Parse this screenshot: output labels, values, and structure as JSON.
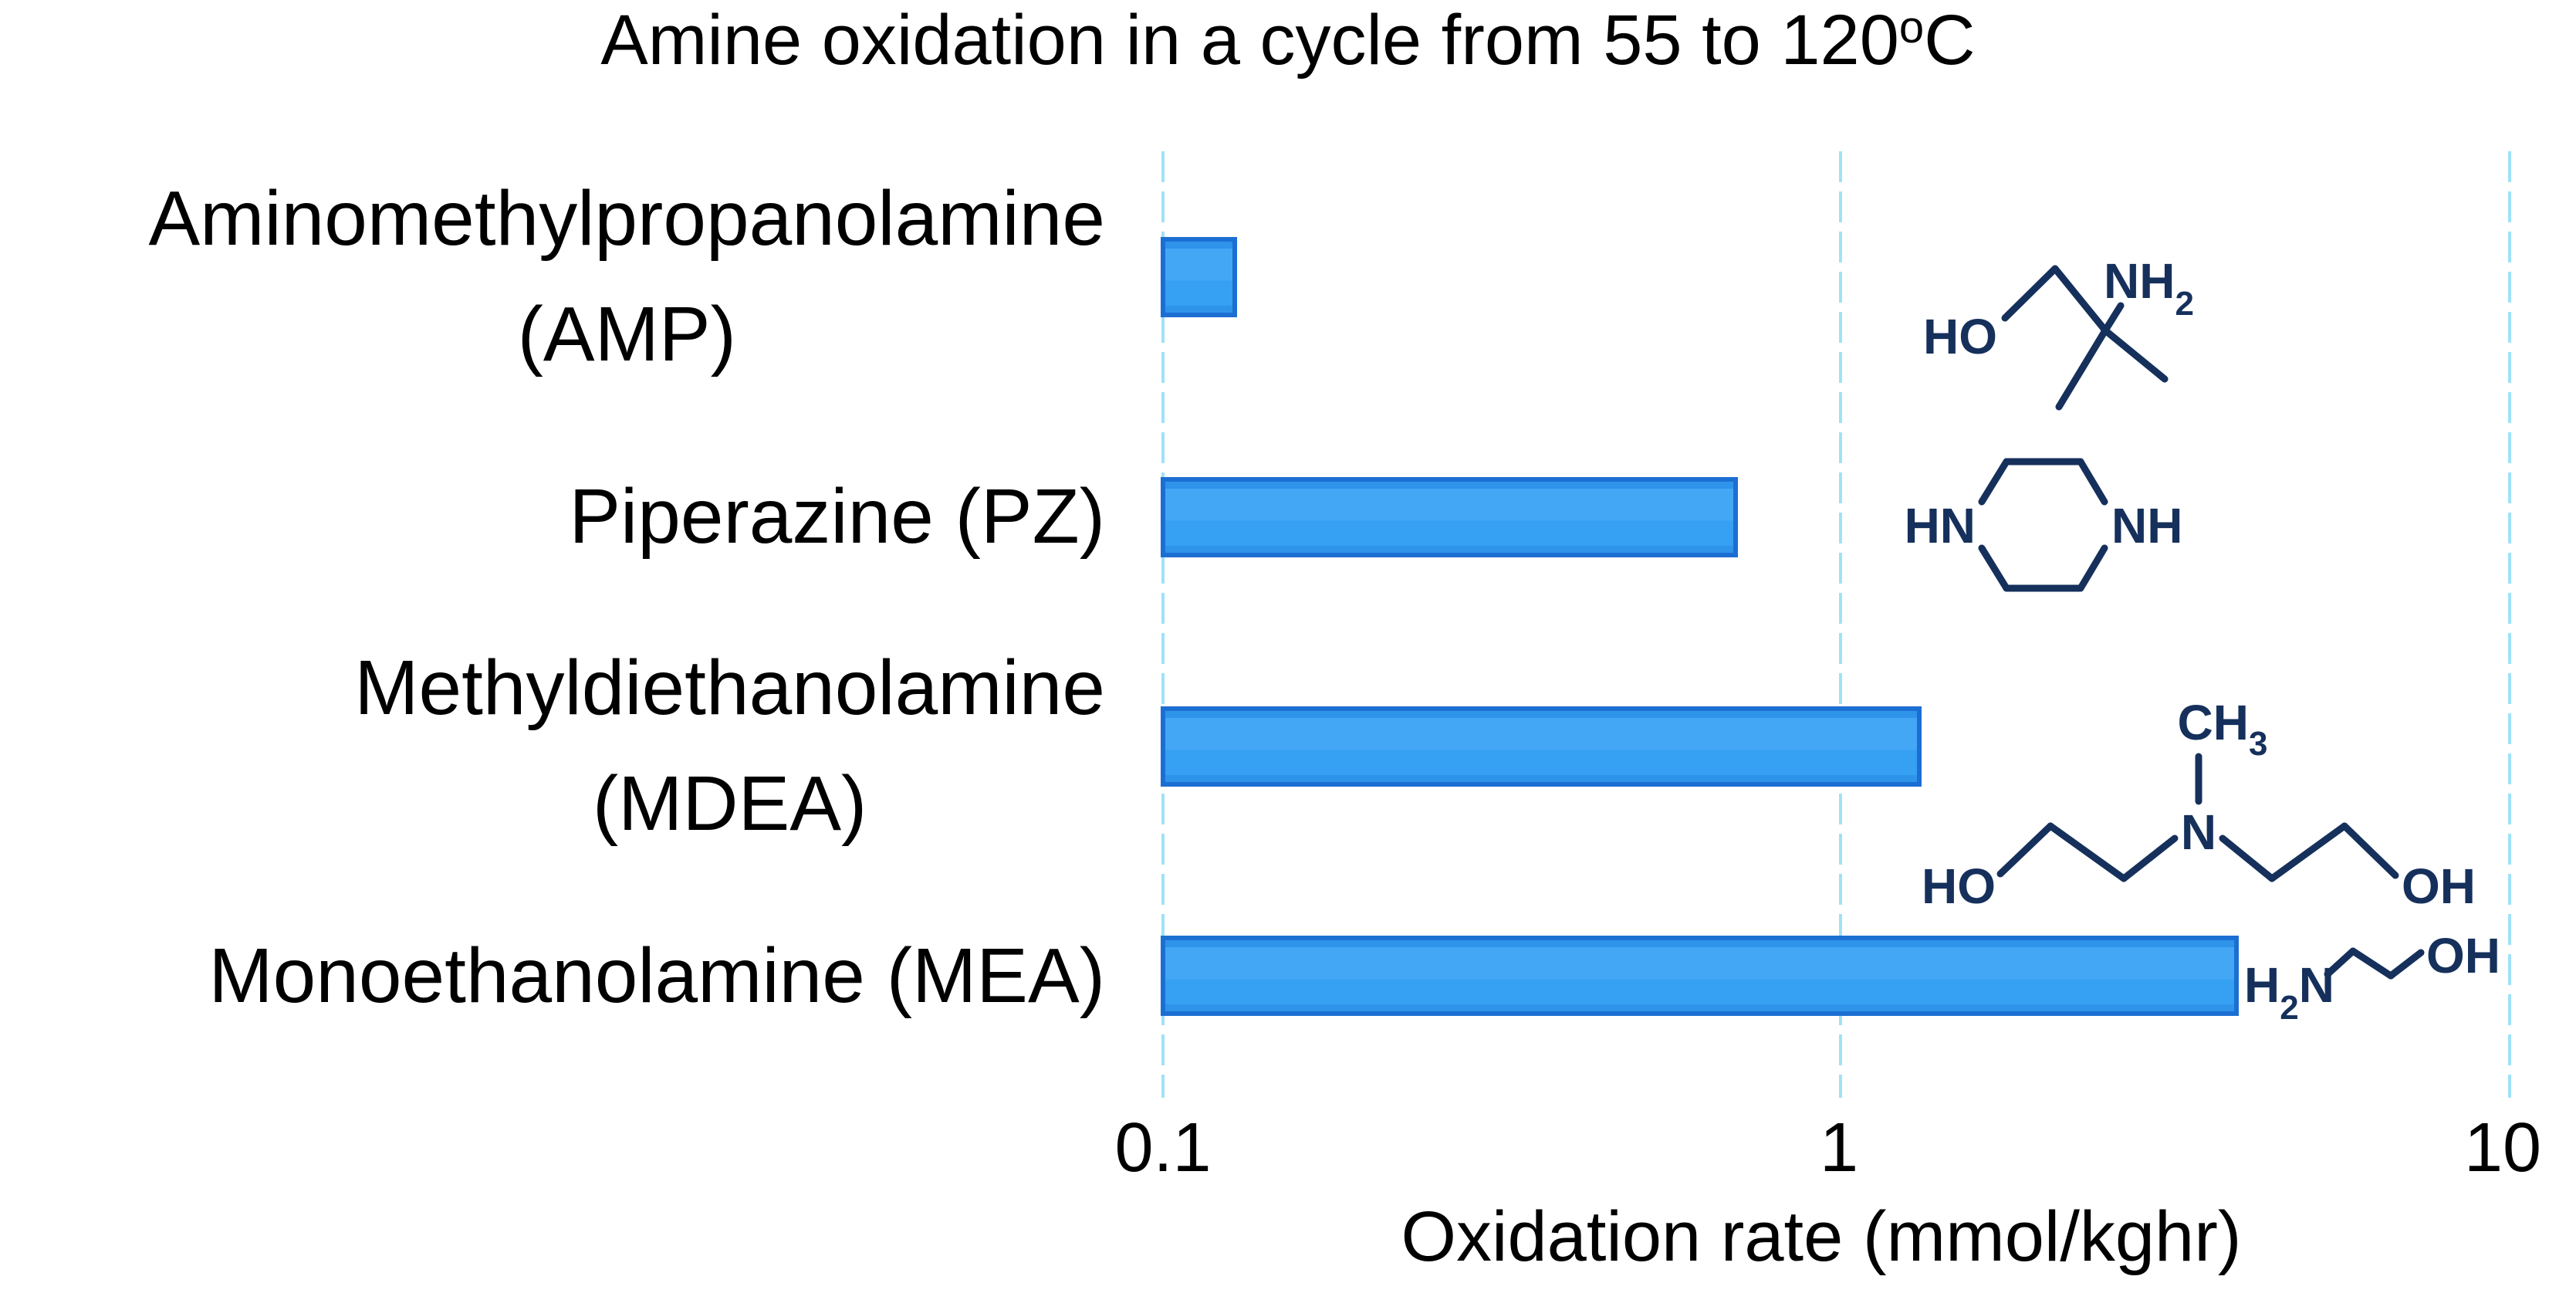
{
  "title": {
    "main": "Amine oxidation in a cycle from 55 to 120",
    "sup": "o",
    "end": "C"
  },
  "categories": [
    {
      "line1": "Aminomethylpropanolamine",
      "line2": "(AMP)"
    },
    {
      "line1": "Piperazine (PZ)",
      "line2": ""
    },
    {
      "line1": "Methyldiethanolamine",
      "line2": "(MDEA)"
    },
    {
      "line1": "Monoethanolamine (MEA)",
      "line2": ""
    }
  ],
  "axis": {
    "xlabel": "Oxidation rate (mmol/kghr)",
    "ticks": [
      "0.1",
      "1",
      "10"
    ]
  },
  "structures": {
    "amp": {
      "ho": "HO",
      "nh": "NH",
      "sub": "2"
    },
    "pz": {
      "hn": "HN",
      "nh": "NH"
    },
    "mdea": {
      "ch": "CH",
      "sub": "3",
      "n": "N",
      "ho": "HO",
      "oh": "OH"
    },
    "mea": {
      "h": "H",
      "sub": "2",
      "n": "N",
      "oh": "OH"
    }
  },
  "chart_data": {
    "type": "bar",
    "orientation": "horizontal",
    "title": "Amine oxidation in a cycle from 55 to 120°C",
    "categories": [
      "Aminomethylpropanolamine (AMP)",
      "Piperazine (PZ)",
      "Methyldiethanolamine (MDEA)",
      "Monoethanolamine (MEA)"
    ],
    "values": [
      0.13,
      0.72,
      1.35,
      4.0
    ],
    "xlabel": "Oxidation rate (mmol/kghr)",
    "xscale": "log",
    "xlim": [
      0.1,
      10
    ],
    "xticks": [
      0.1,
      1,
      10
    ],
    "grid": "vertical dashed lines at decades",
    "legend": "none",
    "bar_fill_color": "#3ba1f3",
    "bar_border_color": "#1c6fd2",
    "gridline_color": "#9fe2f8",
    "structure_color": "#16305c",
    "annotations": "chemical structure drawn right of each bar"
  }
}
